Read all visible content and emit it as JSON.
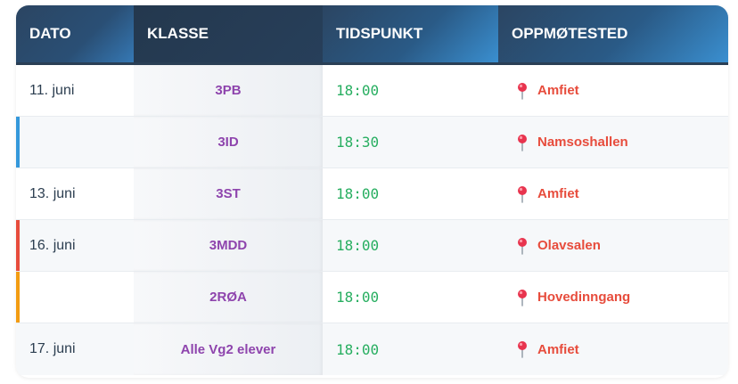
{
  "headers": [
    "DATO",
    "KLASSE",
    "TIDSPUNKT",
    "OPPMØTESTED"
  ],
  "rows": [
    {
      "date": "11. juni",
      "class": "3PB",
      "time": "18:00",
      "place": "Amfiet",
      "stripe": ""
    },
    {
      "date": "",
      "class": "3ID",
      "time": "18:30",
      "place": "Namsoshallen",
      "stripe": "#3498db"
    },
    {
      "date": "13. juni",
      "class": "3ST",
      "time": "18:00",
      "place": "Amfiet",
      "stripe": ""
    },
    {
      "date": "16. juni",
      "class": "3MDD",
      "time": "18:00",
      "place": "Olavsalen",
      "stripe": "#e74c3c"
    },
    {
      "date": "",
      "class": "2RØA",
      "time": "18:00",
      "place": "Hovedinngang",
      "stripe": "#f39c12"
    },
    {
      "date": "17. juni",
      "class": "Alle Vg2 elever",
      "time": "18:00",
      "place": "Amfiet",
      "stripe": ""
    }
  ],
  "icons": {
    "location": "pushpin-icon"
  },
  "colors": {
    "header": "#2a5a86",
    "class": "#8e44ad",
    "time": "#27ae60",
    "place": "#e74c3c"
  }
}
